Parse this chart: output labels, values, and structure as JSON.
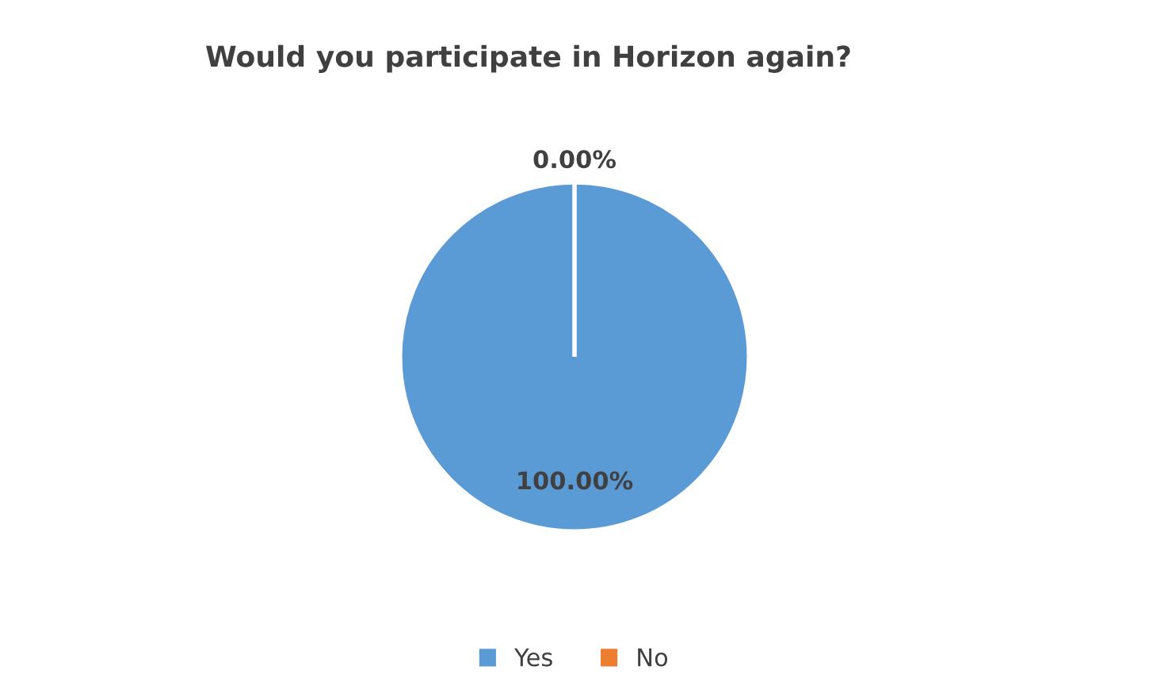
{
  "chart_data": {
    "type": "pie",
    "title": "Would you participate in Horizon again?",
    "categories": [
      "Yes",
      "No"
    ],
    "values": [
      100,
      0
    ],
    "colors": [
      "#5b9bd5",
      "#ed7d31"
    ],
    "value_labels": [
      "100.00%",
      "0.00%"
    ],
    "legend": "bottom"
  }
}
